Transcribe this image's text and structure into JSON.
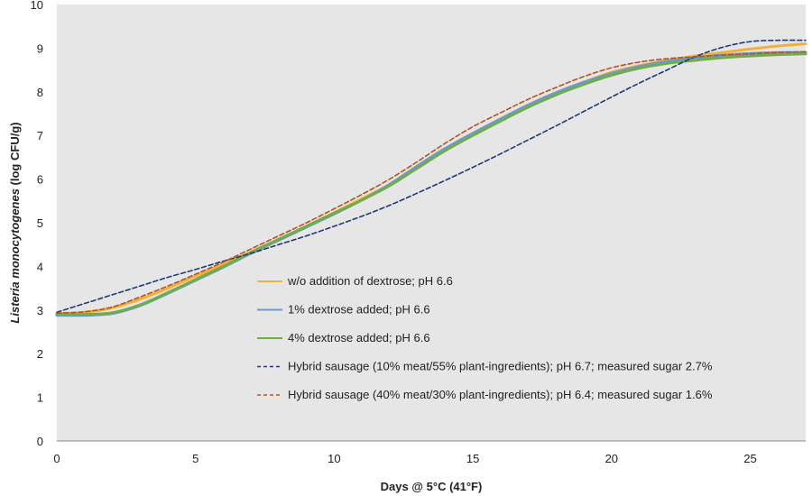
{
  "chart_data": {
    "type": "line",
    "title": "",
    "xlabel": "Days @ 5°C (41°F)",
    "ylabel": "Listeria monocytogenes (log CFU/g)",
    "xlim": [
      0,
      27
    ],
    "ylim": [
      0,
      10
    ],
    "xticks": [
      0,
      5,
      10,
      15,
      20,
      25
    ],
    "yticks": [
      0,
      1,
      2,
      3,
      4,
      5,
      6,
      7,
      8,
      9,
      10
    ],
    "grid": false,
    "legend_position": "bottom-center",
    "background_color": "#e6e6e6",
    "series": [
      {
        "name": "w/o addition of dextrose; pH 6.6",
        "color": "#f2b134",
        "style": "solid",
        "x": [
          0,
          1,
          2,
          3,
          4,
          5,
          6,
          7,
          8,
          9,
          10,
          11,
          12,
          13,
          14,
          15,
          16,
          17,
          18,
          19,
          20,
          21,
          22,
          23,
          24,
          25,
          26,
          27
        ],
        "y": [
          2.92,
          2.95,
          3.05,
          3.25,
          3.5,
          3.78,
          4.05,
          4.33,
          4.62,
          4.92,
          5.23,
          5.55,
          5.88,
          6.3,
          6.7,
          7.05,
          7.38,
          7.7,
          7.98,
          8.22,
          8.45,
          8.6,
          8.72,
          8.82,
          8.9,
          8.98,
          9.05,
          9.1
        ]
      },
      {
        "name": "1% dextrose added; pH 6.6",
        "color": "#6b9bd1",
        "style": "solid",
        "x": [
          0,
          1,
          2,
          3,
          4,
          5,
          6,
          7,
          8,
          9,
          10,
          11,
          12,
          13,
          14,
          15,
          16,
          17,
          18,
          19,
          20,
          21,
          22,
          23,
          24,
          25,
          26,
          27
        ],
        "y": [
          2.88,
          2.88,
          2.92,
          3.1,
          3.38,
          3.68,
          3.98,
          4.3,
          4.6,
          4.9,
          5.2,
          5.52,
          5.88,
          6.3,
          6.7,
          7.05,
          7.38,
          7.7,
          7.98,
          8.22,
          8.42,
          8.58,
          8.7,
          8.78,
          8.84,
          8.88,
          8.9,
          8.9
        ]
      },
      {
        "name": "4% dextrose added; pH 6.6",
        "color": "#70ad47",
        "style": "solid",
        "x": [
          0,
          1,
          2,
          3,
          4,
          5,
          6,
          7,
          8,
          9,
          10,
          11,
          12,
          13,
          14,
          15,
          16,
          17,
          18,
          19,
          20,
          21,
          22,
          23,
          24,
          25,
          26,
          27
        ],
        "y": [
          2.9,
          2.9,
          2.94,
          3.12,
          3.4,
          3.7,
          4.0,
          4.32,
          4.62,
          4.92,
          5.22,
          5.52,
          5.85,
          6.25,
          6.65,
          7.0,
          7.33,
          7.65,
          7.93,
          8.17,
          8.38,
          8.54,
          8.65,
          8.72,
          8.78,
          8.82,
          8.85,
          8.87
        ]
      },
      {
        "name": "Hybrid sausage (10% meat/55% plant-ingredients); pH 6.7; measured sugar 2.7%",
        "color": "#1f3a7a",
        "style": "dashed",
        "x": [
          0,
          1,
          2,
          3,
          4,
          5,
          6,
          7,
          8,
          9,
          10,
          11,
          12,
          13,
          14,
          15,
          16,
          17,
          18,
          19,
          20,
          21,
          22,
          23,
          24,
          25,
          26,
          27
        ],
        "y": [
          2.95,
          3.15,
          3.35,
          3.55,
          3.75,
          3.93,
          4.12,
          4.3,
          4.5,
          4.7,
          4.92,
          5.15,
          5.4,
          5.68,
          5.97,
          6.27,
          6.58,
          6.9,
          7.22,
          7.55,
          7.88,
          8.2,
          8.5,
          8.8,
          9.02,
          9.15,
          9.18,
          9.18
        ]
      },
      {
        "name": "Hybrid sausage (40% meat/30% plant-ingredients); pH 6.4; measured sugar 1.6%",
        "color": "#b5541e",
        "style": "dashed",
        "x": [
          0,
          1,
          2,
          3,
          4,
          5,
          6,
          7,
          8,
          9,
          10,
          11,
          12,
          13,
          14,
          15,
          16,
          17,
          18,
          19,
          20,
          21,
          22,
          23,
          24,
          25,
          26,
          27
        ],
        "y": [
          2.93,
          2.96,
          3.07,
          3.3,
          3.55,
          3.82,
          4.1,
          4.4,
          4.7,
          5.0,
          5.32,
          5.65,
          6.0,
          6.4,
          6.82,
          7.2,
          7.52,
          7.83,
          8.1,
          8.35,
          8.55,
          8.68,
          8.76,
          8.8,
          8.84,
          8.87,
          8.9,
          8.92
        ]
      }
    ]
  }
}
